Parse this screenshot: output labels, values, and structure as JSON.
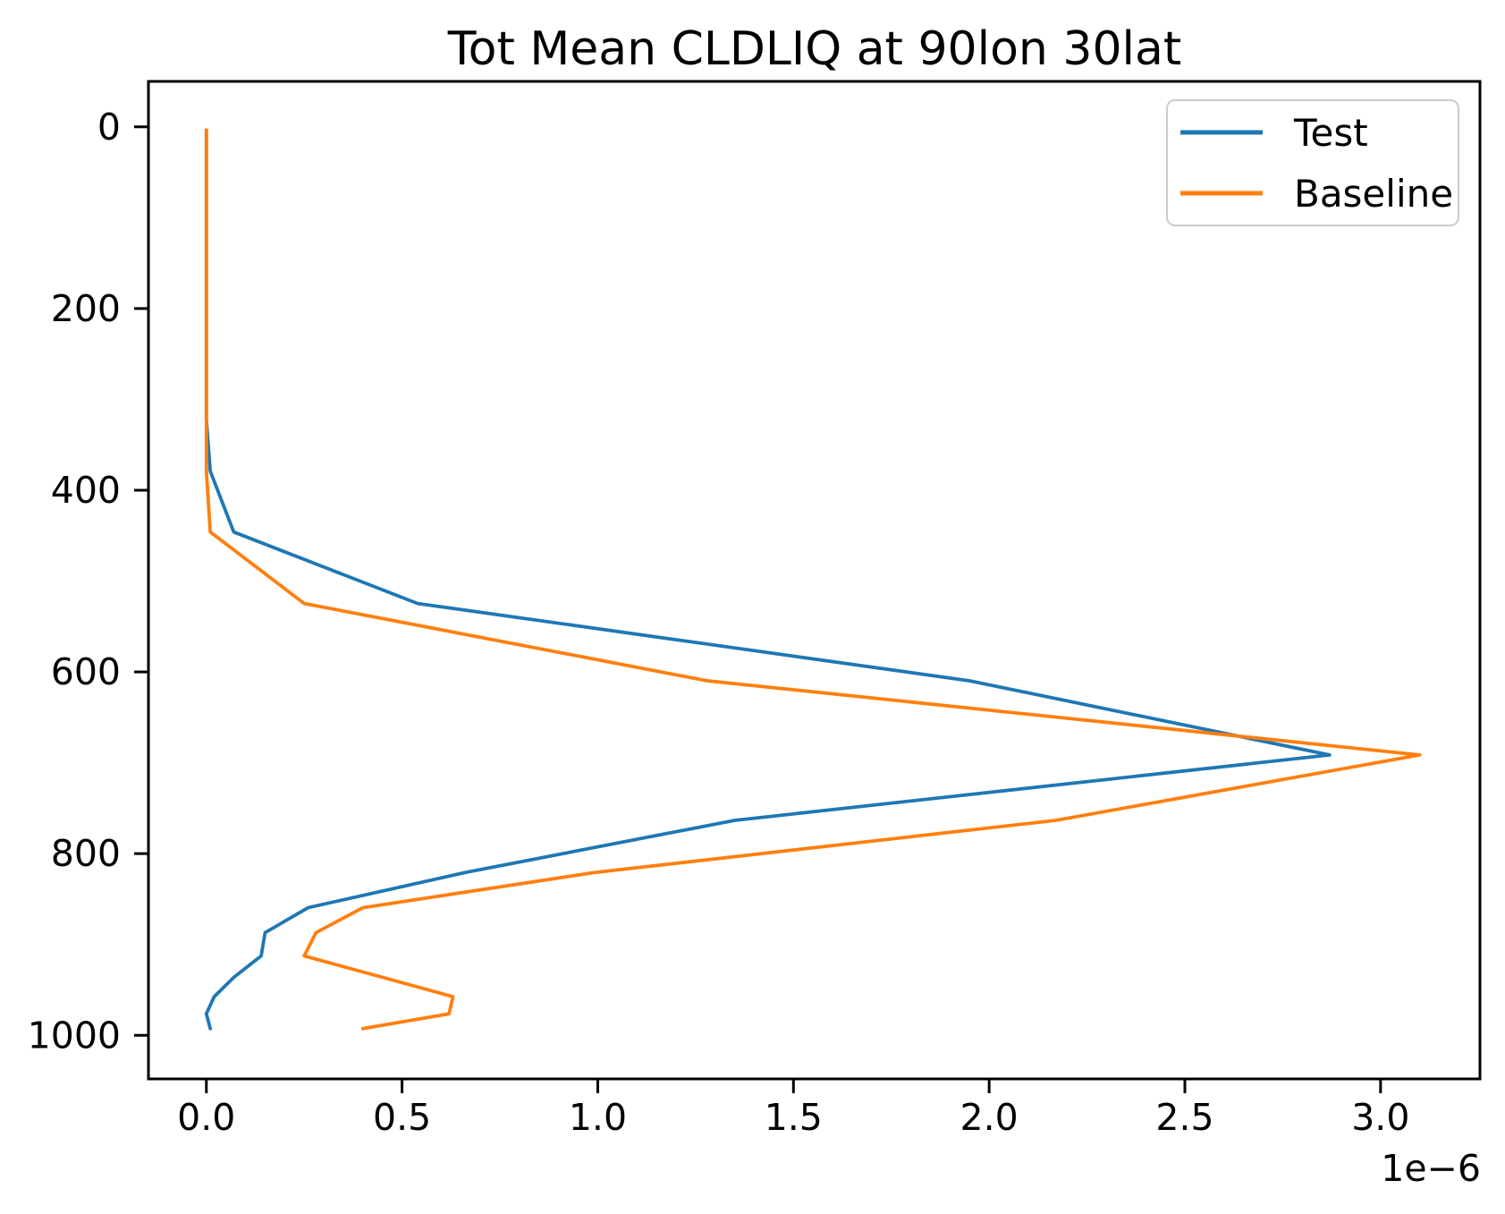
{
  "figure": {
    "background": "#ffffff",
    "spine_color": "#000000",
    "x_offset_label": "1e−6"
  },
  "chart_data": {
    "type": "line",
    "title": "Tot Mean CLDLIQ at 90lon 30lat",
    "xlabel": "",
    "ylabel": "",
    "x_scale_note": "x values are in units of 1e-6",
    "grid": false,
    "legend_position": "upper right",
    "x_ticks": [
      0.0,
      0.5,
      1.0,
      1.5,
      2.0,
      2.5,
      3.0
    ],
    "y_ticks": [
      0,
      200,
      400,
      600,
      800,
      1000
    ],
    "xlim": [
      -0.148,
      3.254
    ],
    "ylim": [
      -50,
      1048
    ],
    "y_axis_inverted": true,
    "levels": [
      3.6,
      7.6,
      14.4,
      24.6,
      38.3,
      54.6,
      72.0,
      87.8,
      103.3,
      121.5,
      142.9,
      168.2,
      197.9,
      232.8,
      273.9,
      322.2,
      379.1,
      446.0,
      524.7,
      609.8,
      691.4,
      763.4,
      820.9,
      859.5,
      887.0,
      912.6,
      936.2,
      957.5,
      976.3,
      992.6
    ],
    "series": [
      {
        "name": "Test",
        "color": "#1f77b4",
        "values": [
          0.0,
          0.0,
          0.0,
          0.0,
          0.0,
          0.0,
          0.0,
          0.0,
          0.0,
          0.0,
          0.0,
          0.0,
          0.0,
          0.0,
          0.0,
          0.0,
          0.01,
          0.07,
          0.54,
          1.95,
          2.87,
          1.35,
          0.66,
          0.26,
          0.15,
          0.14,
          0.07,
          0.02,
          0.0,
          0.01
        ]
      },
      {
        "name": "Baseline",
        "color": "#ff7f0e",
        "values": [
          0.0,
          0.0,
          0.0,
          0.0,
          0.0,
          0.0,
          0.0,
          0.0,
          0.0,
          0.0,
          0.0,
          0.0,
          0.0,
          0.0,
          0.0,
          0.0,
          0.0,
          0.01,
          0.25,
          1.28,
          3.1,
          2.17,
          0.99,
          0.4,
          0.28,
          0.25,
          0.45,
          0.63,
          0.62,
          0.4
        ]
      }
    ]
  },
  "legend": {
    "entries": [
      {
        "label": "Test",
        "color": "#1f77b4"
      },
      {
        "label": "Baseline",
        "color": "#ff7f0e"
      }
    ]
  }
}
